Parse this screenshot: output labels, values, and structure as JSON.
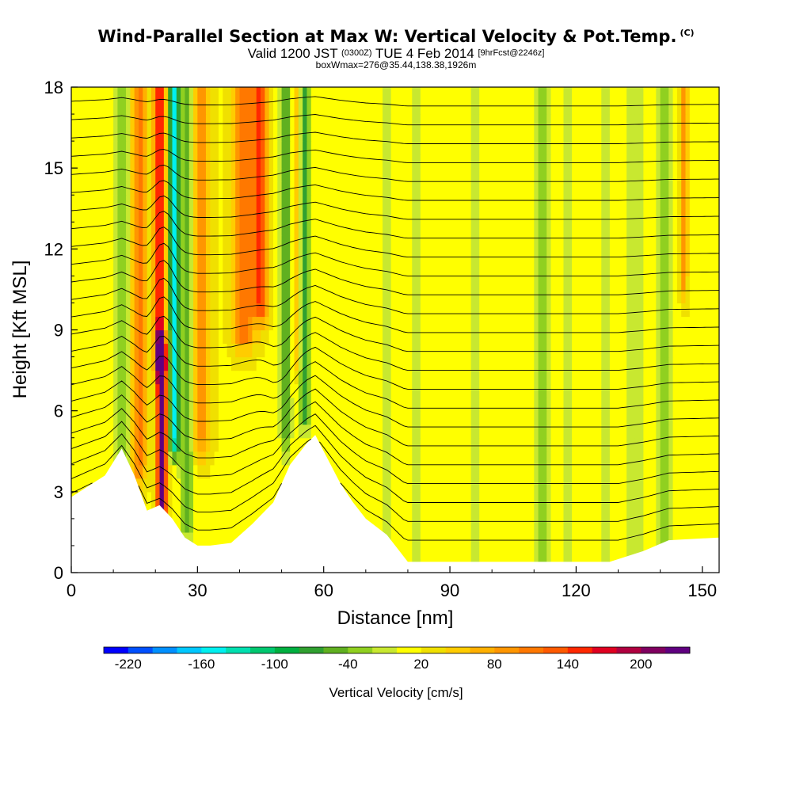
{
  "chart_data": {
    "type": "heatmap",
    "title": "Wind-Parallel Section at Max W: Vertical Velocity & Pot.Temp.",
    "title_mark": "(C)",
    "subtitle_parts": [
      "Valid 1200 JST",
      "(0300Z)",
      "TUE 4 Feb 2014",
      "[9hrFcst@2246z]"
    ],
    "subtitle2": "boxWmax=276@35.44,138.38,1926m",
    "xlabel": "Distance [nm]",
    "ylabel": "Height [Kft MSL]",
    "xlim": [
      0,
      154
    ],
    "ylim": [
      0,
      18
    ],
    "x_ticks": [
      0,
      30,
      60,
      90,
      120,
      150
    ],
    "x_tick_labels": [
      "0",
      "30",
      "60",
      "90",
      "120",
      "150"
    ],
    "y_ticks": [
      0,
      3,
      6,
      9,
      12,
      15,
      18
    ],
    "y_tick_labels": [
      "0",
      "3",
      "6",
      "9",
      "12",
      "15",
      "18"
    ],
    "colorbar": {
      "label": "Vertical Velocity [cm/s]",
      "min": -240,
      "max": 240,
      "levels": 24,
      "tick_values": [
        -220,
        -160,
        -100,
        -40,
        20,
        80,
        140,
        200
      ],
      "tick_labels": [
        "-220",
        "-160",
        "-100",
        "-40",
        "20",
        "80",
        "140",
        "200"
      ],
      "colors": [
        "#0000ff",
        "#0050ff",
        "#0090ff",
        "#00c8ff",
        "#00f0f0",
        "#00e0b0",
        "#00c870",
        "#00b040",
        "#30a030",
        "#60b020",
        "#90d020",
        "#c8e830",
        "#ffff00",
        "#f0e000",
        "#ffcc00",
        "#ffb000",
        "#ff9600",
        "#ff7800",
        "#ff5a00",
        "#ff2800",
        "#e00020",
        "#b00040",
        "#800060",
        "#600080"
      ]
    },
    "terrain_kft": [
      [
        0,
        2.8
      ],
      [
        4,
        3.2
      ],
      [
        8,
        3.6
      ],
      [
        12,
        4.6
      ],
      [
        15,
        3.6
      ],
      [
        18,
        2.3
      ],
      [
        21,
        2.5
      ],
      [
        24,
        2.0
      ],
      [
        27,
        1.3
      ],
      [
        30,
        1.0
      ],
      [
        33,
        1.0
      ],
      [
        38,
        1.1
      ],
      [
        43,
        1.8
      ],
      [
        48,
        2.6
      ],
      [
        52,
        4.0
      ],
      [
        56,
        4.8
      ],
      [
        58,
        5.1
      ],
      [
        61,
        4.2
      ],
      [
        64,
        3.3
      ],
      [
        67,
        2.6
      ],
      [
        70,
        2.0
      ],
      [
        75,
        1.4
      ],
      [
        80,
        0.4
      ],
      [
        90,
        0.4
      ],
      [
        100,
        0.4
      ],
      [
        105,
        0.4
      ],
      [
        110,
        0.4
      ],
      [
        118,
        0.4
      ],
      [
        124,
        0.4
      ],
      [
        128,
        0.4
      ],
      [
        136,
        0.8
      ],
      [
        142,
        1.2
      ],
      [
        154,
        1.3
      ]
    ],
    "w_features": [
      {
        "x": 12,
        "z_min": 4,
        "z_max": 18,
        "w": -60,
        "sigma": 2.2
      },
      {
        "x": 16,
        "z_min": 4,
        "z_max": 18,
        "w": 90,
        "sigma": 1.8
      },
      {
        "x": 21.5,
        "z_min": 2.3,
        "z_max": 8,
        "w": 230,
        "sigma": 1.2
      },
      {
        "x": 21,
        "z_min": 8,
        "z_max": 18,
        "w": 160,
        "sigma": 1.3
      },
      {
        "x": 24.5,
        "z_min": 5,
        "z_max": 18,
        "w": -170,
        "sigma": 1.2
      },
      {
        "x": 27.5,
        "z_min": 2,
        "z_max": 18,
        "w": -70,
        "sigma": 1.5
      },
      {
        "x": 31,
        "z_min": 5,
        "z_max": 18,
        "w": 70,
        "sigma": 2.0
      },
      {
        "x": 41,
        "z_min": 9,
        "z_max": 18,
        "w": 100,
        "sigma": 2.5
      },
      {
        "x": 45,
        "z_min": 10,
        "z_max": 18,
        "w": 120,
        "sigma": 1.8
      },
      {
        "x": 51,
        "z_min": 5,
        "z_max": 18,
        "w": -70,
        "sigma": 1.3
      },
      {
        "x": 55.5,
        "z_min": 6,
        "z_max": 18,
        "w": -90,
        "sigma": 1.2
      },
      {
        "x": 53.5,
        "z_min": 8,
        "z_max": 18,
        "w": 40,
        "sigma": 0.9
      },
      {
        "x": 75,
        "z_min": 0,
        "z_max": 18,
        "w": -35,
        "sigma": 1.6
      },
      {
        "x": 82,
        "z_min": 0,
        "z_max": 18,
        "w": -30,
        "sigma": 1.8
      },
      {
        "x": 96,
        "z_min": 0,
        "z_max": 18,
        "w": -30,
        "sigma": 1.5
      },
      {
        "x": 112,
        "z_min": 0,
        "z_max": 18,
        "w": -45,
        "sigma": 1.8
      },
      {
        "x": 118,
        "z_min": 0,
        "z_max": 18,
        "w": -30,
        "sigma": 1.5
      },
      {
        "x": 127,
        "z_min": 0,
        "z_max": 18,
        "w": -35,
        "sigma": 1.8
      },
      {
        "x": 134,
        "z_min": 0,
        "z_max": 18,
        "w": -40,
        "sigma": 1.8
      },
      {
        "x": 141,
        "z_min": 0,
        "z_max": 18,
        "w": -45,
        "sigma": 2.0
      },
      {
        "x": 145.5,
        "z_min": 11,
        "z_max": 18,
        "w": 80,
        "sigma": 0.9
      }
    ]
  }
}
